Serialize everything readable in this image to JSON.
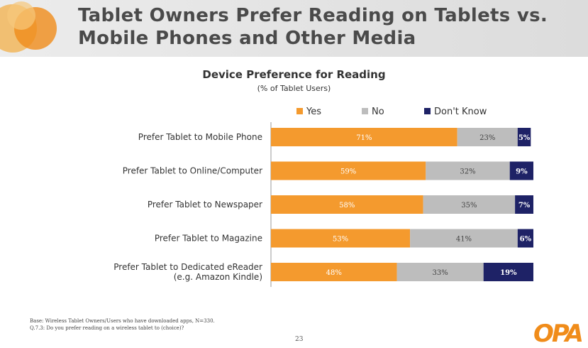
{
  "header": {
    "title_line1": "Tablet Owners Prefer Reading on Tablets vs.",
    "title_line2": "Mobile Phones and Other Media"
  },
  "colors": {
    "yes": "#F49A2E",
    "no": "#BDBDBD",
    "dont_know": "#1E2266",
    "brand": "#F08C1A"
  },
  "chart_data": {
    "type": "bar",
    "orientation": "horizontal",
    "stacked": true,
    "title": "Device Preference for Reading",
    "subtitle": "(% of Tablet Users)",
    "legend_position": "top",
    "categories": [
      [
        "Prefer Tablet to Mobile Phone"
      ],
      [
        "Prefer Tablet to Online/Computer"
      ],
      [
        "Prefer Tablet to Newspaper"
      ],
      [
        "Prefer Tablet to Magazine"
      ],
      [
        "Prefer Tablet to Dedicated eReader",
        "(e.g. Amazon Kindle)"
      ]
    ],
    "series": [
      {
        "name": "Yes",
        "values": [
          71,
          59,
          58,
          53,
          48
        ],
        "labels": [
          "71%",
          "59%",
          "58%",
          "53%",
          "48%"
        ]
      },
      {
        "name": "No",
        "values": [
          23,
          32,
          35,
          41,
          33
        ],
        "labels": [
          "23%",
          "32%",
          "35%",
          "41%",
          "33%"
        ]
      },
      {
        "name": "Don't Know",
        "values": [
          5,
          9,
          7,
          6,
          19
        ],
        "labels": [
          "5%",
          "9%",
          "7%",
          "6%",
          "19%"
        ]
      }
    ],
    "xlim": [
      0,
      100
    ]
  },
  "footnote": {
    "line1": "Base:  Wireless Tablet Owners/Users who have downloaded apps, N=330.",
    "line2": "Q.7.3:  Do you prefer reading on a wireless tablet to (choice)?"
  },
  "page_number": "23",
  "brand_logo_text": "OPA"
}
